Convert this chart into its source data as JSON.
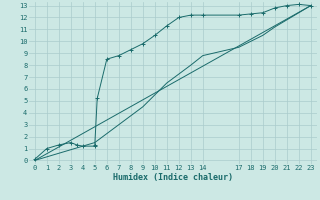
{
  "xlabel": "Humidex (Indice chaleur)",
  "bg_color": "#cce8e4",
  "grid_color": "#aacccc",
  "line_color": "#1a6b6b",
  "xlim": [
    -0.5,
    23.5
  ],
  "ylim": [
    -0.3,
    13.3
  ],
  "xticks": [
    0,
    1,
    2,
    3,
    4,
    5,
    6,
    7,
    8,
    9,
    10,
    11,
    12,
    13,
    14,
    17,
    18,
    19,
    20,
    21,
    22,
    23
  ],
  "yticks": [
    0,
    1,
    2,
    3,
    4,
    5,
    6,
    7,
    8,
    9,
    10,
    11,
    12,
    13
  ],
  "line1_x": [
    0,
    1,
    2,
    3,
    3.5,
    4,
    5,
    5,
    5.2,
    6,
    7,
    8,
    9,
    10,
    11,
    12,
    13,
    14,
    17,
    18,
    19,
    20,
    21,
    22,
    23
  ],
  "line1_y": [
    0.1,
    1.0,
    1.3,
    1.5,
    1.3,
    1.2,
    1.2,
    1.3,
    5.2,
    8.5,
    8.8,
    9.3,
    9.8,
    10.5,
    11.3,
    12.0,
    12.2,
    12.2,
    12.2,
    12.3,
    12.4,
    12.8,
    13.0,
    13.1,
    13.0
  ],
  "line2_x": [
    0,
    23
  ],
  "line2_y": [
    0,
    13
  ],
  "line3_x": [
    0,
    5,
    9,
    11,
    13,
    14,
    17,
    18,
    19,
    20,
    21,
    22,
    23
  ],
  "line3_y": [
    0,
    1.5,
    4.5,
    6.5,
    8.0,
    8.8,
    9.5,
    10.0,
    10.5,
    11.2,
    11.8,
    12.4,
    13.0
  ]
}
